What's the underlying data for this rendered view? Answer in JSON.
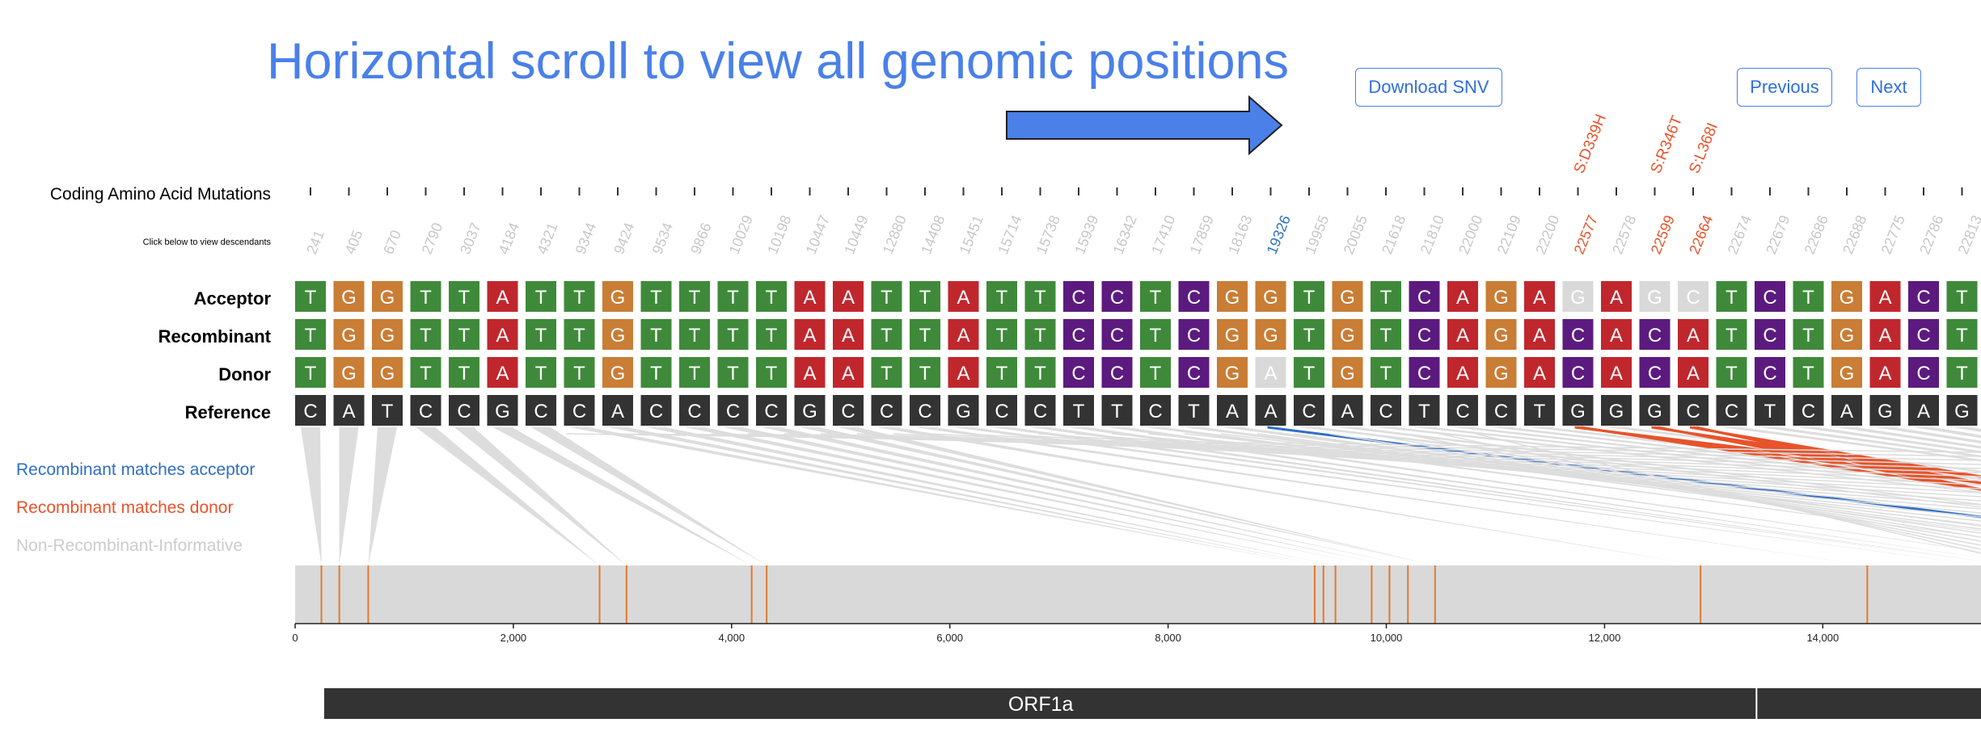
{
  "hint": {
    "text": "Horizontal scroll to view all genomic positions"
  },
  "buttons": {
    "download": "Download SNV",
    "previous": "Previous",
    "next": "Next"
  },
  "labels": {
    "coding": "Coding Amino Acid Mutations",
    "click_hint": "Click below to view descendants",
    "acceptor": "Acceptor",
    "recombinant": "Recombinant",
    "donor": "Donor",
    "reference": "Reference"
  },
  "legend": {
    "acceptor": "Recombinant matches acceptor",
    "donor": "Recombinant matches donor",
    "non": "Non-Recombinant-Informative"
  },
  "colors": {
    "T": "#3f8a3a",
    "G": "#c97d35",
    "A": "#c0272d",
    "C": "#5c1a7f",
    "N": "#d9d9d9",
    "ref": "#333333",
    "acceptor": "#2f6fc4",
    "donor": "#e8532b",
    "non": "#cccccc",
    "hint": "#4a80e8"
  },
  "positions": [
    "241",
    "405",
    "670",
    "2790",
    "3037",
    "4184",
    "4321",
    "9344",
    "9424",
    "9534",
    "9866",
    "10029",
    "10198",
    "10447",
    "10449",
    "12880",
    "14408",
    "15451",
    "15714",
    "15738",
    "15939",
    "16342",
    "17410",
    "17859",
    "18163",
    "19326",
    "19955",
    "20055",
    "21618",
    "21810",
    "22000",
    "22109",
    "22200",
    "22577",
    "22578",
    "22599",
    "22664",
    "22674",
    "22679",
    "22686",
    "22688",
    "22775",
    "22786",
    "22813"
  ],
  "position_status": [
    "non",
    "non",
    "non",
    "non",
    "non",
    "non",
    "non",
    "non",
    "non",
    "non",
    "non",
    "non",
    "non",
    "non",
    "non",
    "non",
    "non",
    "non",
    "non",
    "non",
    "non",
    "non",
    "non",
    "non",
    "non",
    "acceptor",
    "non",
    "non",
    "non",
    "non",
    "non",
    "non",
    "non",
    "donor",
    "non",
    "donor",
    "donor",
    "non",
    "non",
    "non",
    "non",
    "non",
    "non",
    "non"
  ],
  "aa_mutations": [
    {
      "column": 33,
      "label": "S:D339H"
    },
    {
      "column": 35,
      "label": "S:R346T"
    },
    {
      "column": 36,
      "label": "S:L368I"
    }
  ],
  "sequences": {
    "acceptor": [
      "T",
      "G",
      "G",
      "T",
      "T",
      "A",
      "T",
      "T",
      "G",
      "T",
      "T",
      "T",
      "T",
      "A",
      "A",
      "T",
      "T",
      "A",
      "T",
      "T",
      "C",
      "C",
      "T",
      "C",
      "G",
      "G",
      "T",
      "G",
      "T",
      "C",
      "A",
      "G",
      "A",
      "G",
      "A",
      "G",
      "C",
      "T",
      "C",
      "T",
      "G",
      "A",
      "C",
      "T"
    ],
    "recombinant": [
      "T",
      "G",
      "G",
      "T",
      "T",
      "A",
      "T",
      "T",
      "G",
      "T",
      "T",
      "T",
      "T",
      "A",
      "A",
      "T",
      "T",
      "A",
      "T",
      "T",
      "C",
      "C",
      "T",
      "C",
      "G",
      "G",
      "T",
      "G",
      "T",
      "C",
      "A",
      "G",
      "A",
      "C",
      "A",
      "C",
      "A",
      "T",
      "C",
      "T",
      "G",
      "A",
      "C",
      "T"
    ],
    "donor": [
      "T",
      "G",
      "G",
      "T",
      "T",
      "A",
      "T",
      "T",
      "G",
      "T",
      "T",
      "T",
      "T",
      "A",
      "A",
      "T",
      "T",
      "A",
      "T",
      "T",
      "C",
      "C",
      "T",
      "C",
      "G",
      "A",
      "T",
      "G",
      "T",
      "C",
      "A",
      "G",
      "A",
      "C",
      "A",
      "C",
      "A",
      "T",
      "C",
      "T",
      "G",
      "A",
      "C",
      "T"
    ],
    "reference": [
      "C",
      "A",
      "T",
      "C",
      "C",
      "G",
      "C",
      "C",
      "A",
      "C",
      "C",
      "C",
      "C",
      "G",
      "C",
      "C",
      "C",
      "G",
      "C",
      "C",
      "T",
      "T",
      "C",
      "T",
      "A",
      "A",
      "C",
      "A",
      "C",
      "T",
      "C",
      "C",
      "T",
      "G",
      "G",
      "G",
      "C",
      "C",
      "T",
      "C",
      "A",
      "G",
      "A",
      "G"
    ]
  },
  "faded_cells": {
    "acceptor": [
      33,
      35,
      36
    ],
    "donor": [
      25
    ]
  },
  "genome_axis": {
    "ticks": [
      "0",
      "2,000",
      "4,000",
      "6,000",
      "8,000",
      "10,000",
      "12,000",
      "14,000"
    ],
    "tick_values": [
      0,
      2000,
      4000,
      6000,
      8000,
      10000,
      12000,
      14000
    ],
    "max": 15450
  },
  "track_marks": [
    241,
    405,
    670,
    2790,
    3037,
    4184,
    4321,
    9344,
    9424,
    9534,
    9866,
    10029,
    10198,
    10447,
    12880,
    14408
  ],
  "genes": [
    {
      "name": "ORF1a",
      "start": 266,
      "end": 13400
    },
    {
      "name": "",
      "start": 13400,
      "end": 15450
    }
  ]
}
